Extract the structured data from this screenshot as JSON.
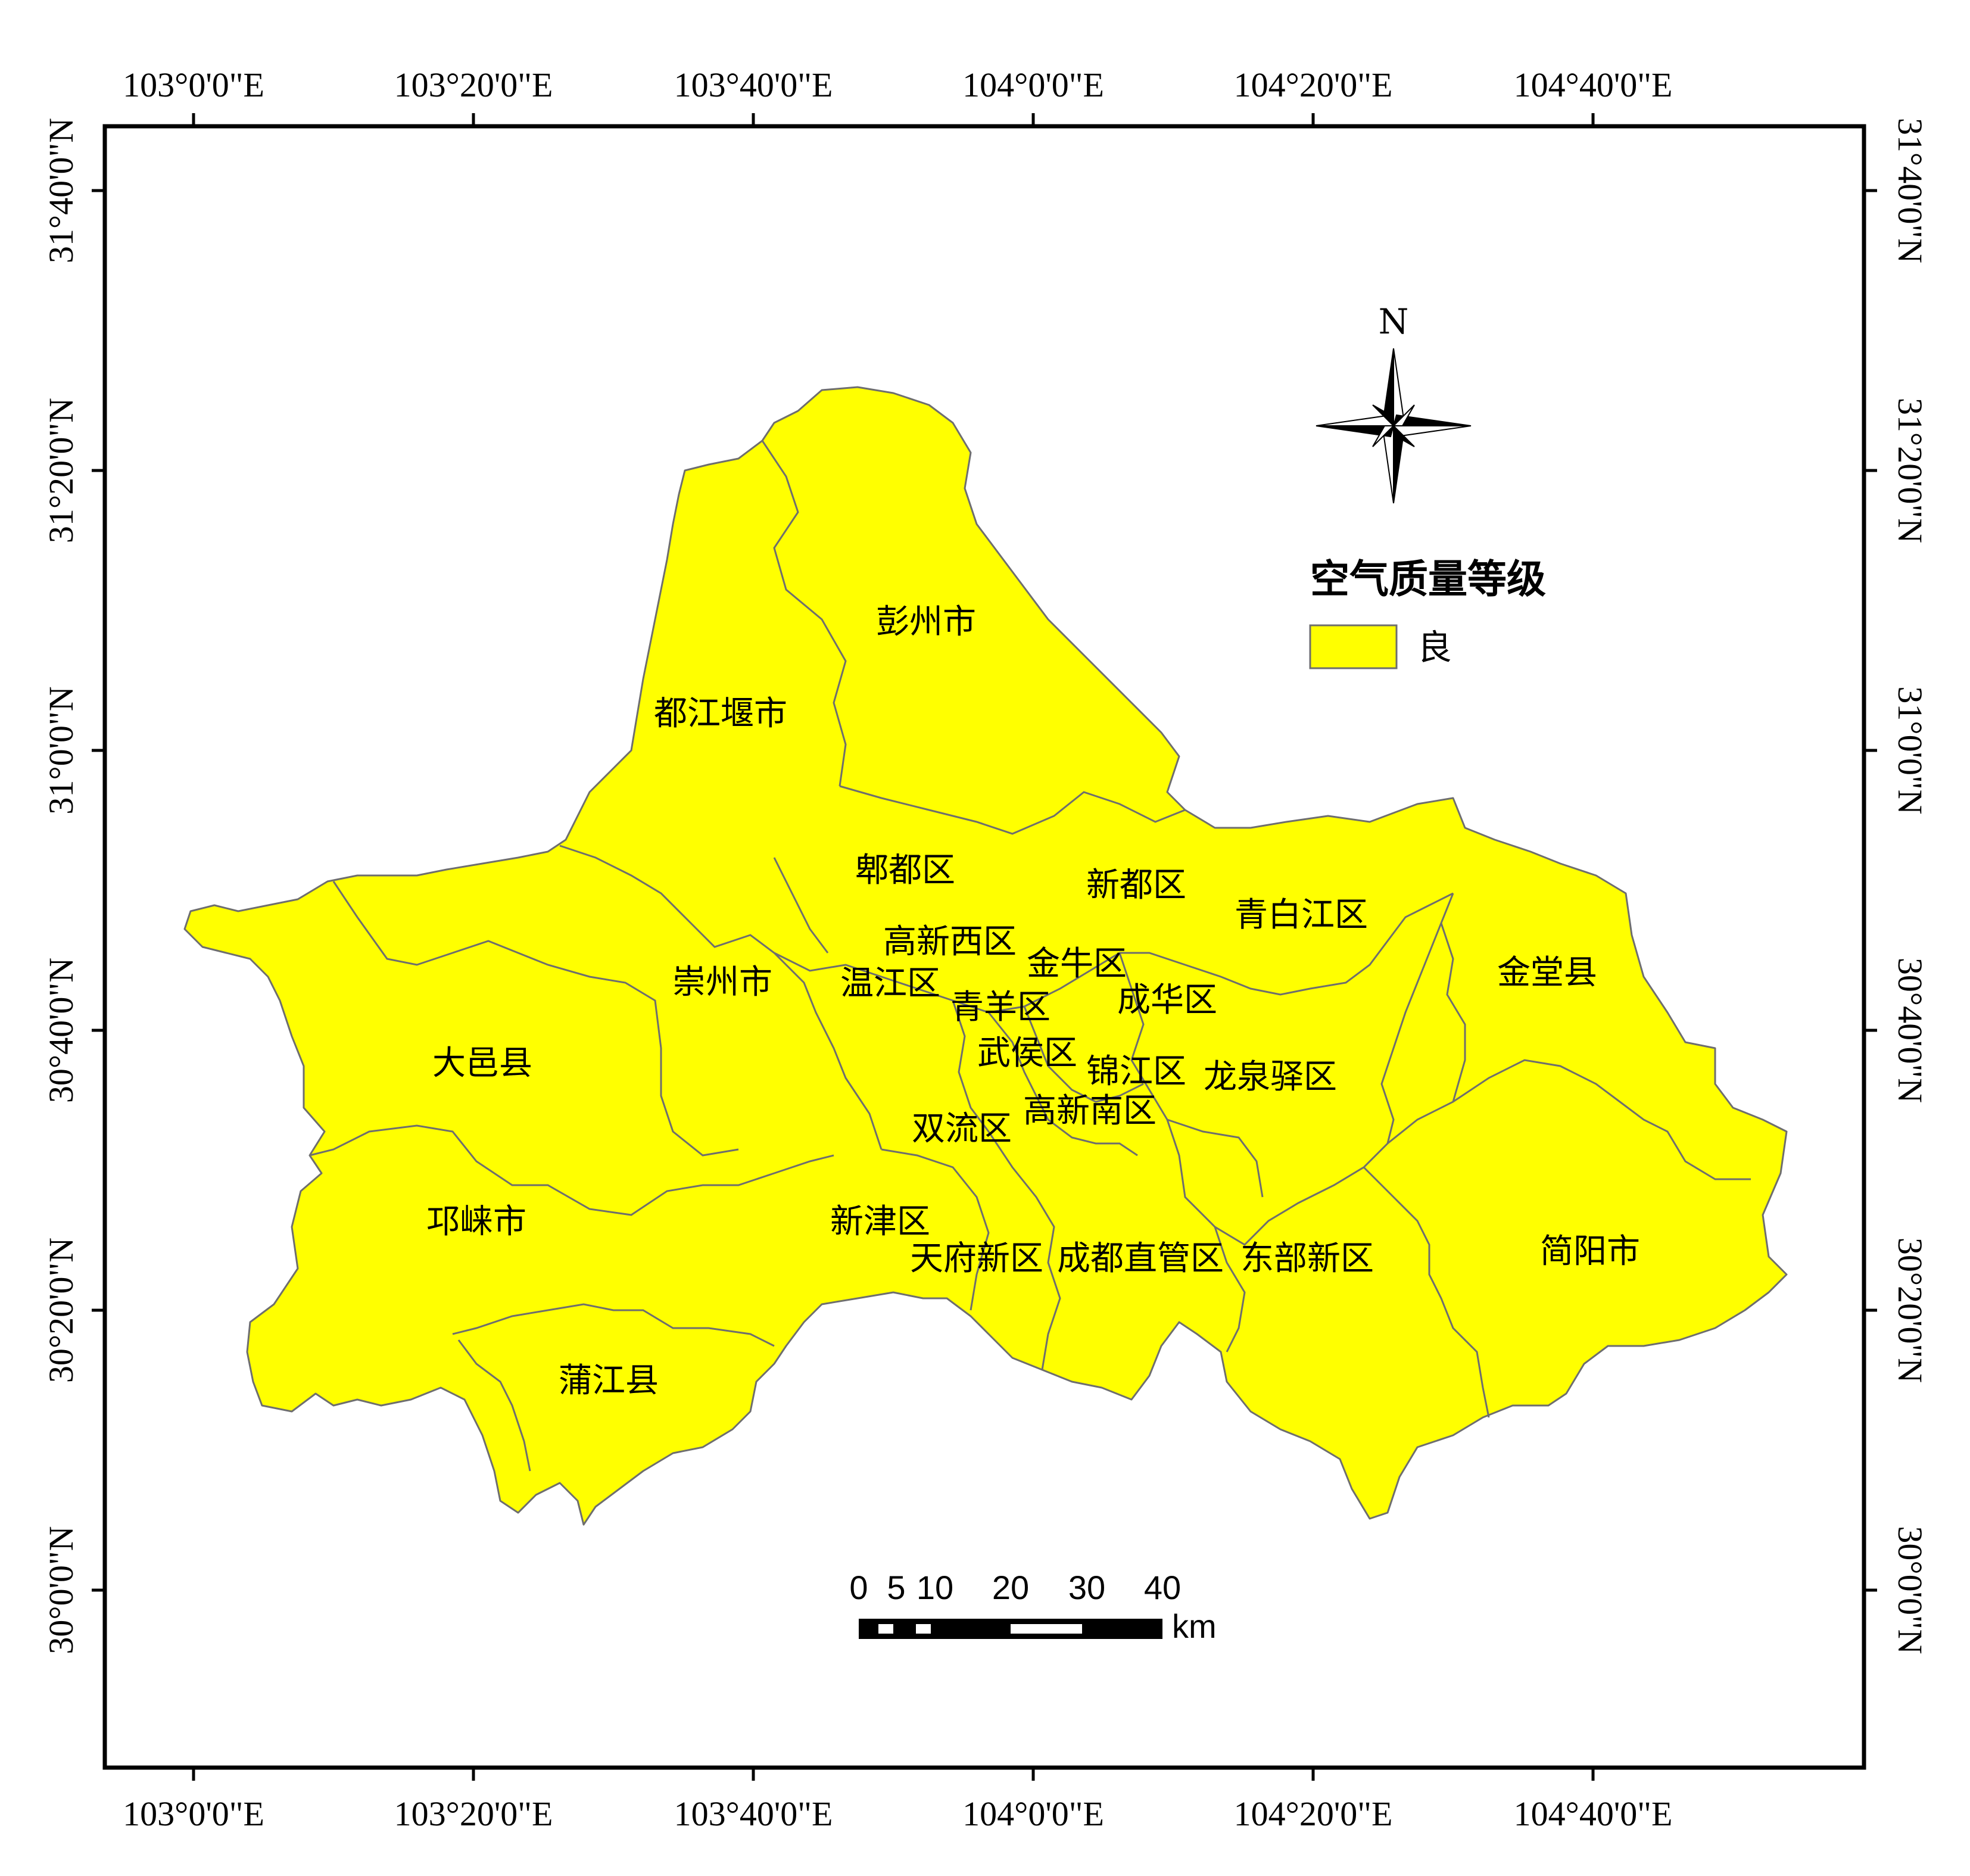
{
  "map": {
    "top_lon_labels": [
      "103°0'0\"E",
      "103°20'0\"E",
      "103°40'0\"E",
      "104°0'0\"E",
      "104°20'0\"E",
      "104°40'0\"E"
    ],
    "bottom_lon_labels": [
      "103°0'0\"E",
      "103°20'0\"E",
      "103°40'0\"E",
      "104°0'0\"E",
      "104°20'0\"E",
      "104°40'0\"E"
    ],
    "left_lat_labels": [
      "31°40'0\"N",
      "31°20'0\"N",
      "31°0'0\"N",
      "30°40'0\"N",
      "30°20'0\"N",
      "30°0'0\"N"
    ],
    "right_lat_labels": [
      "31°40'0\"N",
      "31°20'0\"N",
      "31°0'0\"N",
      "30°40'0\"N",
      "30°20'0\"N",
      "30°0'0\"N"
    ],
    "region_fill": "#ffff00",
    "districts": [
      "彭州市",
      "都江堰市",
      "郫都区",
      "新都区",
      "青白江区",
      "高新西区",
      "金牛区",
      "温江区",
      "崇州市",
      "青羊区",
      "成华区",
      "金堂县",
      "大邑县",
      "武侯区",
      "锦江区",
      "龙泉驿区",
      "高新南区",
      "双流区",
      "邛崃市",
      "新津区",
      "天府新区",
      "成都直管区",
      "东部新区",
      "简阳市",
      "蒲江县"
    ]
  },
  "north_arrow": {
    "label": "N",
    "icon": "north-arrow-icon"
  },
  "legend": {
    "title": "空气质量等级",
    "items": [
      {
        "label": "良",
        "color": "#ffff00"
      }
    ]
  },
  "scale_bar": {
    "ticks": [
      "0",
      "5",
      "10",
      "20",
      "30",
      "40"
    ],
    "unit": "km"
  }
}
